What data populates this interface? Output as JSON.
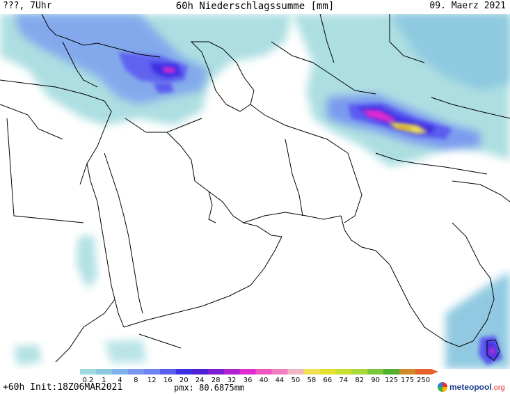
{
  "header": {
    "left": "???, 7Uhr",
    "title": "60h Niederschlagssumme [mm]",
    "date": "09. Maerz 2021"
  },
  "map": {
    "region": "Middle East, Arabian Peninsula and South Asia",
    "colors": {
      "land": "#ffffff",
      "border": "#000000"
    }
  },
  "legend": {
    "ticks": [
      "0.2",
      "1",
      "4",
      "8",
      "12",
      "16",
      "20",
      "24",
      "28",
      "32",
      "36",
      "40",
      "44",
      "50",
      "58",
      "66",
      "74",
      "82",
      "90",
      "125",
      "175",
      "250"
    ],
    "colors": [
      "#9ed8dd",
      "#8bc7e0",
      "#7fb2ea",
      "#7897f0",
      "#6f82f4",
      "#5b5cf0",
      "#3e2fe4",
      "#4a1fd6",
      "#7a1fd6",
      "#b01fd0",
      "#e02bcf",
      "#f055c2",
      "#f07fbf",
      "#eeb7c2",
      "#f0e055",
      "#e6e030",
      "#c8e030",
      "#a8d83a",
      "#78c83a",
      "#50b02e",
      "#d08a2a",
      "#e8602a"
    ]
  },
  "footer": {
    "init": "+60h Init:18Z06MAR2021",
    "pmx": "pmx: 80.6875mm",
    "brand": "meteopool",
    "brand_suffix": ".org"
  }
}
